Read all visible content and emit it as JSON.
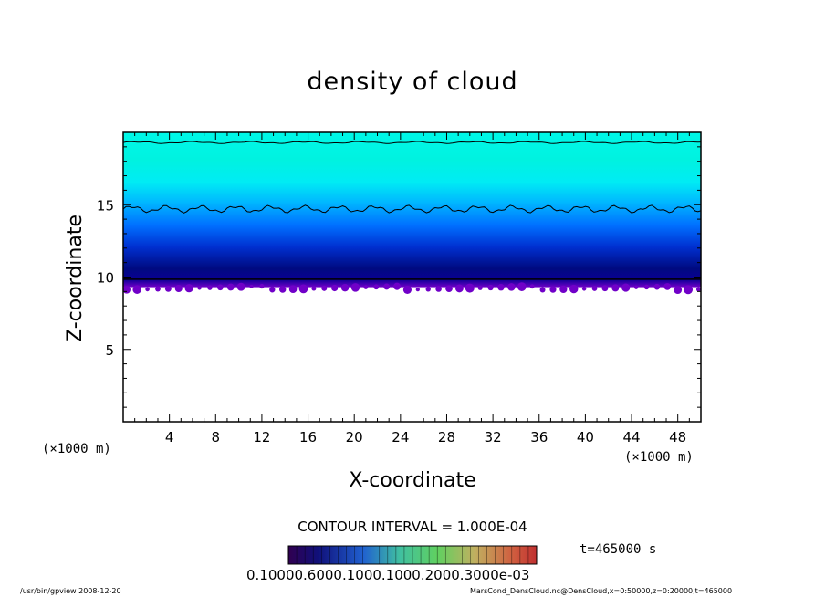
{
  "chart_data": {
    "type": "heatmap",
    "title": "density of cloud",
    "xlabel": "X-coordinate",
    "ylabel": "Z-coordinate",
    "x_unit": "(×1000 m)",
    "y_unit": "(×1000 m)",
    "xlim": [
      0,
      50
    ],
    "ylim": [
      0,
      20
    ],
    "x_ticks": [
      "4",
      "8",
      "12",
      "16",
      "20",
      "24",
      "28",
      "32",
      "36",
      "40",
      "44",
      "48"
    ],
    "y_ticks": [
      "5",
      "10",
      "15"
    ],
    "contour_interval": "CONTOUR INTERVAL = 1.000E-04",
    "time": "t=465000 s",
    "colorbar_labels": "0.10000.6000.1000.1000.2000.3000e-03",
    "colors": {
      "band_purple": "#7000c8",
      "band_dark_blue": "#000a80",
      "band_blue": "#0060ff",
      "band_cyan": "#00ffe8"
    }
  },
  "footer": {
    "left": "/usr/bin/gpview   2008-12-20",
    "right": "MarsCond_DensCloud.nc@DensCloud,x=0:50000,z=0:20000,t=465000"
  }
}
